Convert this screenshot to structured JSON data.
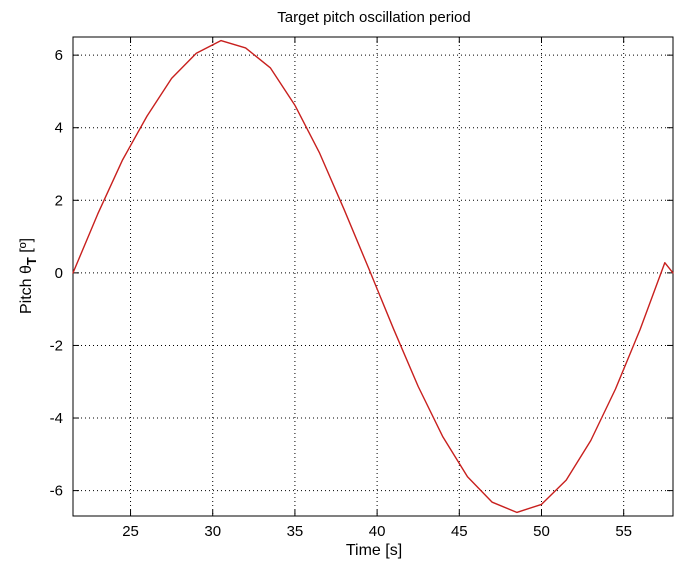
{
  "chart_data": {
    "type": "line",
    "title": "Target pitch oscillation period",
    "xlabel": "Time [s]",
    "ylabel_prefix": "Pitch θ",
    "ylabel_subscript": "T",
    "ylabel_suffix": " [º]",
    "xlim": [
      21.5,
      58
    ],
    "ylim": [
      -6.7,
      6.5
    ],
    "xticks": [
      25,
      30,
      35,
      40,
      45,
      50,
      55
    ],
    "yticks": [
      -6,
      -4,
      -2,
      0,
      2,
      4,
      6
    ],
    "xtick_labels": [
      "25",
      "30",
      "35",
      "40",
      "45",
      "50",
      "55"
    ],
    "ytick_labels": [
      "-6",
      "-4",
      "-2",
      "0",
      "2",
      "4",
      "6"
    ],
    "grid": true,
    "grid_style": "dotted",
    "series": [
      {
        "color": "#c8201e",
        "x": [
          21.5,
          23.0,
          24.5,
          26.0,
          27.5,
          29.0,
          30.5,
          32.0,
          33.5,
          35.0,
          36.5,
          38.0,
          39.5,
          41.0,
          42.5,
          44.0,
          45.5,
          47.0,
          48.5,
          50.0,
          51.5,
          53.0,
          54.5,
          56.0,
          57.5,
          58.0
        ],
        "y": [
          0.0,
          1.62,
          3.1,
          4.32,
          5.36,
          6.05,
          6.4,
          6.2,
          5.65,
          4.62,
          3.3,
          1.74,
          0.11,
          -1.54,
          -3.13,
          -4.52,
          -5.62,
          -6.32,
          -6.6,
          -6.38,
          -5.71,
          -4.62,
          -3.2,
          -1.56,
          0.28,
          0.0
        ]
      }
    ]
  }
}
